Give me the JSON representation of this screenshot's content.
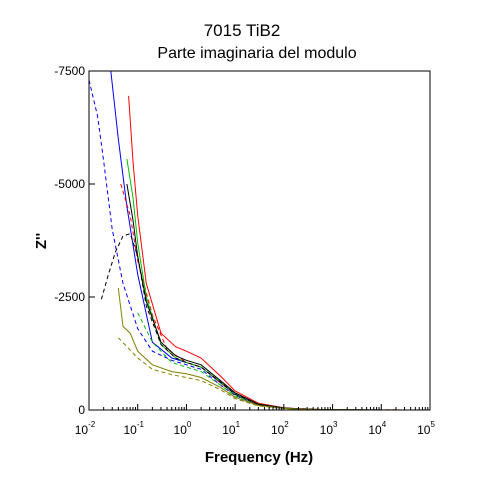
{
  "chart_data": {
    "type": "line",
    "title": "7015 TiB2",
    "subtitle": "Parte imaginaria del modulo",
    "xlabel": "Frequency (Hz)",
    "ylabel": "Z''",
    "xscale": "log",
    "xlim": [
      0.01,
      100000
    ],
    "ylim": [
      0,
      -7500
    ],
    "yaxis_inverted": true,
    "grid": false,
    "legend": "none",
    "y_tick_labels": [
      "-7500",
      "-5000",
      "-2500",
      "0"
    ],
    "x_tick_labels": [
      {
        "base": "10",
        "exp": "-2"
      },
      {
        "base": "10",
        "exp": "-1"
      },
      {
        "base": "10",
        "exp": "0"
      },
      {
        "base": "10",
        "exp": "1"
      },
      {
        "base": "10",
        "exp": "2"
      },
      {
        "base": "10",
        "exp": "3"
      },
      {
        "base": "10",
        "exp": "4"
      },
      {
        "base": "10",
        "exp": "5"
      }
    ],
    "series": [
      {
        "color": "#0000ff",
        "dash": "solid",
        "points": [
          [
            0.028,
            -7500
          ],
          [
            0.04,
            -6000
          ],
          [
            0.06,
            -4500
          ],
          [
            0.1,
            -3000
          ],
          [
            0.2,
            -1500
          ],
          [
            0.5,
            -1150
          ],
          [
            1,
            -1050
          ],
          [
            2,
            -950
          ],
          [
            5,
            -600
          ],
          [
            10,
            -350
          ],
          [
            30,
            -120
          ],
          [
            100,
            -40
          ],
          [
            300,
            -12
          ],
          [
            1000,
            -4
          ],
          [
            10000,
            -1
          ],
          [
            100000,
            0
          ]
        ]
      },
      {
        "color": "#0000ff",
        "dash": "dashed",
        "points": [
          [
            0.01,
            -7300
          ],
          [
            0.015,
            -6500
          ],
          [
            0.02,
            -5500
          ],
          [
            0.03,
            -4000
          ],
          [
            0.05,
            -2800
          ],
          [
            0.1,
            -1800
          ],
          [
            0.2,
            -1300
          ],
          [
            0.5,
            -1100
          ],
          [
            1,
            -1000
          ],
          [
            2,
            -900
          ],
          [
            5,
            -550
          ],
          [
            10,
            -320
          ],
          [
            30,
            -110
          ],
          [
            100,
            -35
          ],
          [
            300,
            -10
          ],
          [
            1000,
            -3
          ],
          [
            10000,
            -1
          ],
          [
            100000,
            0
          ]
        ]
      },
      {
        "color": "#ff0000",
        "dash": "solid",
        "points": [
          [
            0.065,
            -6950
          ],
          [
            0.08,
            -5500
          ],
          [
            0.1,
            -4300
          ],
          [
            0.15,
            -2800
          ],
          [
            0.3,
            -1700
          ],
          [
            0.6,
            -1400
          ],
          [
            1,
            -1300
          ],
          [
            2,
            -1150
          ],
          [
            5,
            -750
          ],
          [
            10,
            -420
          ],
          [
            30,
            -150
          ],
          [
            100,
            -50
          ],
          [
            300,
            -15
          ],
          [
            1000,
            -5
          ],
          [
            10000,
            -1
          ],
          [
            100000,
            0
          ]
        ]
      },
      {
        "color": "#ff0000",
        "dash": "dashed",
        "points": [
          [
            0.045,
            -5000
          ],
          [
            0.07,
            -4300
          ],
          [
            0.1,
            -3300
          ],
          [
            0.2,
            -2100
          ],
          [
            0.4,
            -1350
          ],
          [
            1,
            -1050
          ],
          [
            2,
            -950
          ],
          [
            5,
            -600
          ],
          [
            10,
            -350
          ],
          [
            30,
            -120
          ],
          [
            100,
            -40
          ],
          [
            1000,
            -5
          ],
          [
            100000,
            0
          ]
        ]
      },
      {
        "color": "#00c000",
        "dash": "solid",
        "points": [
          [
            0.06,
            -5550
          ],
          [
            0.08,
            -4700
          ],
          [
            0.1,
            -3700
          ],
          [
            0.15,
            -2500
          ],
          [
            0.3,
            -1450
          ],
          [
            0.6,
            -1150
          ],
          [
            1,
            -1050
          ],
          [
            2,
            -950
          ],
          [
            5,
            -620
          ],
          [
            10,
            -360
          ],
          [
            30,
            -130
          ],
          [
            100,
            -45
          ],
          [
            300,
            -15
          ],
          [
            1000,
            -4
          ],
          [
            10000,
            -1
          ],
          [
            100000,
            0
          ]
        ]
      },
      {
        "color": "#00c000",
        "dash": "dashed",
        "points": [
          [
            0.1,
            -2150
          ],
          [
            0.2,
            -1500
          ],
          [
            0.5,
            -1050
          ],
          [
            1,
            -950
          ],
          [
            2,
            -850
          ],
          [
            5,
            -550
          ],
          [
            10,
            -310
          ],
          [
            30,
            -110
          ],
          [
            100,
            -35
          ],
          [
            300,
            -10
          ],
          [
            1000,
            -3
          ],
          [
            10000,
            -1
          ],
          [
            100000,
            0
          ]
        ]
      },
      {
        "color": "#000000",
        "dash": "solid",
        "points": [
          [
            0.06,
            -5000
          ],
          [
            0.08,
            -4200
          ],
          [
            0.1,
            -3400
          ],
          [
            0.15,
            -2400
          ],
          [
            0.3,
            -1500
          ],
          [
            0.6,
            -1200
          ],
          [
            1,
            -1100
          ],
          [
            2,
            -1000
          ],
          [
            5,
            -650
          ],
          [
            10,
            -380
          ],
          [
            30,
            -130
          ],
          [
            100,
            -45
          ],
          [
            300,
            -13
          ],
          [
            1000,
            -4
          ],
          [
            10000,
            -1
          ],
          [
            100000,
            0
          ]
        ]
      },
      {
        "color": "#000000",
        "dash": "dashed",
        "points": [
          [
            0.018,
            -2450
          ],
          [
            0.025,
            -3000
          ],
          [
            0.035,
            -3500
          ],
          [
            0.05,
            -3850
          ],
          [
            0.07,
            -3900
          ],
          [
            0.1,
            -3400
          ],
          [
            0.15,
            -2300
          ],
          [
            0.3,
            -1450
          ],
          [
            0.6,
            -1150
          ],
          [
            1,
            -1050
          ],
          [
            2,
            -950
          ],
          [
            5,
            -620
          ],
          [
            10,
            -350
          ],
          [
            30,
            -120
          ],
          [
            100,
            -40
          ],
          [
            1000,
            -5
          ],
          [
            100000,
            0
          ]
        ]
      },
      {
        "color": "#808000",
        "dash": "solid",
        "points": [
          [
            0.04,
            -2700
          ],
          [
            0.05,
            -1850
          ],
          [
            0.07,
            -1700
          ],
          [
            0.1,
            -1300
          ],
          [
            0.2,
            -1000
          ],
          [
            0.5,
            -850
          ],
          [
            1,
            -800
          ],
          [
            2,
            -720
          ],
          [
            5,
            -500
          ],
          [
            10,
            -280
          ],
          [
            30,
            -100
          ],
          [
            100,
            -35
          ],
          [
            300,
            -10
          ],
          [
            1000,
            -3
          ],
          [
            10000,
            -1
          ],
          [
            100000,
            0
          ]
        ]
      },
      {
        "color": "#808000",
        "dash": "dashed",
        "points": [
          [
            0.04,
            -1600
          ],
          [
            0.06,
            -1400
          ],
          [
            0.1,
            -1150
          ],
          [
            0.2,
            -900
          ],
          [
            0.5,
            -780
          ],
          [
            1,
            -720
          ],
          [
            2,
            -650
          ],
          [
            5,
            -450
          ],
          [
            10,
            -250
          ],
          [
            30,
            -90
          ],
          [
            100,
            -30
          ],
          [
            300,
            -9
          ],
          [
            1000,
            -3
          ],
          [
            10000,
            -1
          ],
          [
            100000,
            0
          ]
        ]
      },
      {
        "color": "#00c000",
        "dash": "dotted",
        "points": [
          [
            1000,
            -4
          ],
          [
            3000,
            -3
          ],
          [
            10000,
            -3
          ],
          [
            30000,
            -3
          ],
          [
            100000,
            -3
          ]
        ]
      }
    ]
  }
}
